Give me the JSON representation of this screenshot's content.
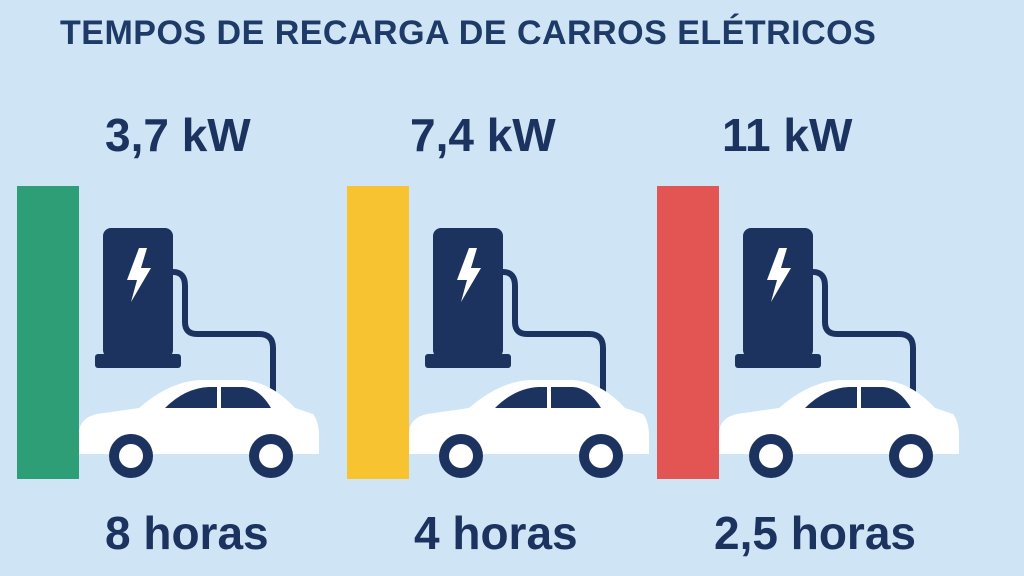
{
  "title": "TEMPOS DE RECARGA DE CARROS ELÉTRICOS",
  "colors": {
    "background": "#cfe4f5",
    "navy": "#1c3360",
    "car": "#ffffff"
  },
  "chargers": [
    {
      "power": "3,7 kW",
      "time": "8 horas",
      "bar_color": "#2e9e77"
    },
    {
      "power": "7,4 kW",
      "time": "4 horas",
      "bar_color": "#f7c331"
    },
    {
      "power": "11 kW",
      "time": "2,5 horas",
      "bar_color": "#e25553"
    }
  ]
}
